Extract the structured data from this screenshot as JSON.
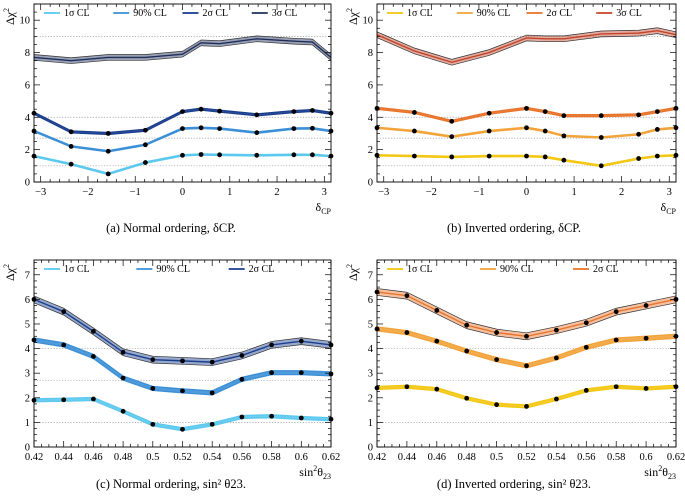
{
  "colors": {
    "blue1": "#5bc8ee",
    "blue2": "#3b8fd6",
    "blue3": "#1a3f8f",
    "blue4": "#1f2f5a",
    "or1": "#f3c712",
    "or2": "#f2a33a",
    "or3": "#e8742a",
    "or4": "#c2452a"
  },
  "chart_data": [
    {
      "id": "a",
      "type": "line",
      "title": "",
      "caption": "(a) Normal ordering, δCP.",
      "ylabel_main": "Δχ",
      "ylabel_sup": "2",
      "xlabel_main": "δ",
      "xlabel_sub": "CP",
      "xlim": [
        -3.1416,
        3.1416
      ],
      "ylim": [
        0,
        11
      ],
      "xticks": [
        -3,
        -2,
        -1,
        0,
        1,
        2,
        3
      ],
      "yticks": [
        0,
        2,
        4,
        6,
        8,
        10
      ],
      "dotted_y": [
        1,
        2.71,
        4,
        9
      ],
      "legend": [
        "1σ CL",
        "90% CL",
        "2σ CL",
        "3σ CL"
      ],
      "legend_colors": [
        "blue1",
        "blue2",
        "blue3",
        "blue4"
      ],
      "x": [
        -3.1416,
        -2.356,
        -1.571,
        -0.785,
        0,
        0.393,
        0.785,
        1.571,
        2.356,
        2.749,
        3.1416
      ],
      "markers": [
        0,
        1,
        2,
        3,
        4,
        5,
        6,
        7,
        8,
        9,
        10
      ],
      "series": [
        {
          "name": "1σ CL",
          "color": "blue1",
          "band": 0.04,
          "values": [
            1.6,
            1.1,
            0.5,
            1.2,
            1.65,
            1.7,
            1.68,
            1.65,
            1.68,
            1.68,
            1.6
          ]
        },
        {
          "name": "90% CL",
          "color": "blue2",
          "band": 0.04,
          "values": [
            3.15,
            2.2,
            1.9,
            2.3,
            3.3,
            3.35,
            3.3,
            3.05,
            3.3,
            3.32,
            3.15
          ]
        },
        {
          "name": "2σ CL",
          "color": "blue3",
          "band": 0.06,
          "values": [
            4.25,
            3.1,
            3.0,
            3.2,
            4.35,
            4.5,
            4.38,
            4.15,
            4.35,
            4.42,
            4.25
          ]
        },
        {
          "name": "3σ CL",
          "color": "blue4",
          "band": 0.18,
          "values": [
            7.7,
            7.5,
            7.7,
            7.7,
            7.9,
            8.6,
            8.55,
            8.85,
            8.7,
            8.65,
            7.7
          ]
        }
      ]
    },
    {
      "id": "b",
      "type": "line",
      "title": "",
      "caption": "(b) Inverted ordering, δCP.",
      "ylabel_main": "Δχ",
      "ylabel_sup": "2",
      "xlabel_main": "δ",
      "xlabel_sub": "CP",
      "xlim": [
        -3.1416,
        3.1416
      ],
      "ylim": [
        0,
        11
      ],
      "xticks": [
        -3,
        -2,
        -1,
        0,
        1,
        2,
        3
      ],
      "yticks": [
        0,
        2,
        4,
        6,
        8,
        10
      ],
      "dotted_y": [
        1,
        2.71,
        4,
        9
      ],
      "legend": [
        "1σ CL",
        "90% CL",
        "2σ CL",
        "3σ CL"
      ],
      "legend_colors": [
        "or1",
        "or2",
        "or3",
        "or4"
      ],
      "x": [
        -3.1416,
        -2.356,
        -1.571,
        -0.785,
        0,
        0.393,
        0.785,
        1.571,
        2.356,
        2.749,
        3.1416
      ],
      "markers": [
        0,
        1,
        2,
        3,
        4,
        5,
        6,
        7,
        8,
        9,
        10
      ],
      "series": [
        {
          "name": "1σ CL",
          "color": "or1",
          "band": 0.04,
          "values": [
            1.65,
            1.6,
            1.55,
            1.6,
            1.6,
            1.55,
            1.35,
            1.0,
            1.45,
            1.6,
            1.65
          ]
        },
        {
          "name": "90% CL",
          "color": "or2",
          "band": 0.04,
          "values": [
            3.35,
            3.15,
            2.8,
            3.15,
            3.35,
            3.15,
            2.85,
            2.75,
            2.95,
            3.25,
            3.35
          ]
        },
        {
          "name": "2σ CL",
          "color": "or3",
          "band": 0.06,
          "values": [
            4.55,
            4.3,
            3.75,
            4.25,
            4.55,
            4.35,
            4.1,
            4.1,
            4.15,
            4.35,
            4.55
          ]
        },
        {
          "name": "3σ CL",
          "color": "or4",
          "band": 0.18,
          "values": [
            9.1,
            8.1,
            7.4,
            8.0,
            8.9,
            8.85,
            8.85,
            9.15,
            9.2,
            9.35,
            9.1
          ]
        }
      ]
    },
    {
      "id": "c",
      "type": "line",
      "title": "",
      "caption": "(c) Normal ordering, sin² θ23.",
      "ylabel_main": "Δχ",
      "ylabel_sup": "2",
      "xlabel_main": "sin",
      "xlabel_sup": "2",
      "xlabel_tail": "θ",
      "xlabel_sub": "23",
      "xlim": [
        0.42,
        0.62
      ],
      "ylim": [
        0,
        7.6
      ],
      "xticks": [
        0.42,
        0.44,
        0.46,
        0.48,
        0.5,
        0.52,
        0.54,
        0.56,
        0.58,
        0.6,
        0.62
      ],
      "xtick_labels": [
        "0.42",
        "0.44",
        "0.46",
        "0.48",
        "0.5",
        "0.52",
        "0.54",
        "0.56",
        "0.58",
        "0.6",
        "0.62"
      ],
      "yticks": [
        0,
        1,
        2,
        3,
        4,
        5,
        6,
        7
      ],
      "dotted_y": [
        1,
        2.71,
        4
      ],
      "legend": [
        "1σ CL",
        "90% CL",
        "2σ CL"
      ],
      "legend_colors": [
        "blue1",
        "blue2",
        "blue3"
      ],
      "x": [
        0.42,
        0.44,
        0.46,
        0.48,
        0.5,
        0.52,
        0.54,
        0.56,
        0.58,
        0.6,
        0.62
      ],
      "markers": [
        0,
        1,
        2,
        3,
        4,
        5,
        6,
        7,
        8,
        9,
        10
      ],
      "series": [
        {
          "name": "1σ CL",
          "color": "blue1",
          "band": 0.06,
          "values": [
            1.9,
            1.92,
            1.95,
            1.45,
            0.92,
            0.72,
            0.92,
            1.22,
            1.25,
            1.18,
            1.13
          ]
        },
        {
          "name": "90% CL",
          "color": "blue2",
          "band": 0.08,
          "values": [
            4.35,
            4.15,
            3.68,
            2.8,
            2.38,
            2.28,
            2.2,
            2.75,
            3.02,
            3.02,
            2.97
          ]
        },
        {
          "name": "2σ CL",
          "color": "blue3",
          "band": 0.14,
          "values": [
            6.0,
            5.5,
            4.7,
            3.85,
            3.55,
            3.5,
            3.45,
            3.72,
            4.15,
            4.3,
            4.15
          ]
        }
      ]
    },
    {
      "id": "d",
      "type": "line",
      "title": "",
      "caption": "(d) Inverted ordering, sin² θ23.",
      "ylabel_main": "Δχ",
      "ylabel_sup": "2",
      "xlabel_main": "sin",
      "xlabel_sup": "2",
      "xlabel_tail": "θ",
      "xlabel_sub": "23",
      "xlim": [
        0.42,
        0.62
      ],
      "ylim": [
        0,
        7.6
      ],
      "xticks": [
        0.42,
        0.44,
        0.46,
        0.48,
        0.5,
        0.52,
        0.54,
        0.56,
        0.58,
        0.6,
        0.62
      ],
      "xtick_labels": [
        "0.42",
        "0.44",
        "0.46",
        "0.48",
        "0.5",
        "0.52",
        "0.54",
        "0.56",
        "0.58",
        "0.6",
        "0.62"
      ],
      "yticks": [
        0,
        1,
        2,
        3,
        4,
        5,
        6,
        7
      ],
      "dotted_y": [
        1,
        2.71,
        4
      ],
      "legend": [
        "1σ CL",
        "90% CL",
        "2σ CL"
      ],
      "legend_colors": [
        "or1",
        "or2",
        "or3"
      ],
      "x": [
        0.42,
        0.44,
        0.46,
        0.48,
        0.5,
        0.52,
        0.54,
        0.56,
        0.58,
        0.6,
        0.62
      ],
      "markers": [
        0,
        1,
        2,
        3,
        4,
        5,
        6,
        7,
        8,
        9,
        10
      ],
      "series": [
        {
          "name": "1σ CL",
          "color": "or1",
          "band": 0.06,
          "values": [
            2.4,
            2.45,
            2.35,
            1.98,
            1.72,
            1.65,
            1.95,
            2.3,
            2.45,
            2.38,
            2.45
          ]
        },
        {
          "name": "90% CL",
          "color": "or2",
          "band": 0.08,
          "values": [
            4.8,
            4.65,
            4.3,
            3.9,
            3.55,
            3.3,
            3.62,
            4.05,
            4.35,
            4.42,
            4.5
          ]
        },
        {
          "name": "2σ CL",
          "color": "or3",
          "band": 0.14,
          "values": [
            6.3,
            6.15,
            5.55,
            4.95,
            4.65,
            4.5,
            4.75,
            5.05,
            5.5,
            5.75,
            6.0
          ]
        }
      ]
    }
  ]
}
